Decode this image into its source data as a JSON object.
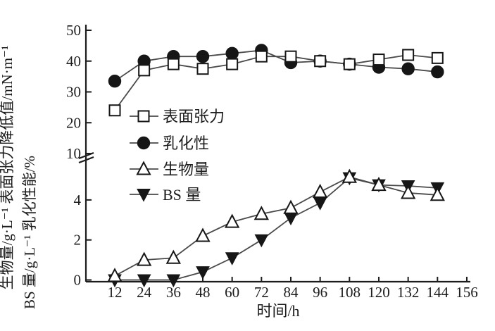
{
  "chart_data": {
    "type": "line",
    "title": "",
    "xlabel": "时间/h",
    "ylabels": {
      "outer": "生物量/g·L⁻¹ 表面张力降低值/mN·m⁻¹",
      "inner": "BS 量/g·L⁻¹ 乳化性能/%"
    },
    "x_ticks": [
      12,
      24,
      36,
      48,
      60,
      72,
      84,
      96,
      108,
      120,
      132,
      144,
      156
    ],
    "y_axis": {
      "upper": {
        "ticks": [
          10,
          20,
          30,
          40,
          50
        ],
        "range": [
          10,
          50
        ]
      },
      "lower": {
        "ticks": [
          0,
          2,
          4
        ],
        "range": [
          0,
          6.3
        ]
      },
      "break_at": 10
    },
    "x": [
      12,
      24,
      36,
      48,
      60,
      72,
      84,
      96,
      108,
      120,
      132,
      144
    ],
    "series": [
      {
        "name": "表面张力",
        "axis": "upper",
        "marker": "square-open",
        "values": [
          24,
          37,
          39,
          37.5,
          39,
          41.5,
          41.5,
          40,
          39,
          40.5,
          42,
          41
        ]
      },
      {
        "name": "乳化性",
        "axis": "upper",
        "marker": "circle-filled",
        "values": [
          33.5,
          40,
          41.5,
          41.5,
          42.5,
          43.5,
          39.5,
          40,
          39,
          38,
          37.5,
          36.5
        ]
      },
      {
        "name": "生物量",
        "axis": "lower",
        "marker": "triangle-up-open",
        "values": [
          0.2,
          1.0,
          1.1,
          2.2,
          2.9,
          3.3,
          3.6,
          4.4,
          5.15,
          4.75,
          4.35,
          4.25
        ]
      },
      {
        "name": "BS 量",
        "axis": "lower",
        "marker": "triangle-down-filled",
        "values": [
          0,
          0,
          0,
          0.4,
          1.1,
          2.0,
          3.1,
          3.85,
          5.1,
          4.75,
          4.7,
          4.6
        ]
      }
    ],
    "legend": {
      "items": [
        "表面张力",
        "乳化性",
        "生物量",
        "BS 量"
      ],
      "position": "upper-left-inside"
    },
    "colors": {
      "line": "#4a4a4a",
      "marker": "#161616",
      "axis": "#1c1c1c",
      "text": "#1c1c1c",
      "background": "#ffffff"
    }
  }
}
